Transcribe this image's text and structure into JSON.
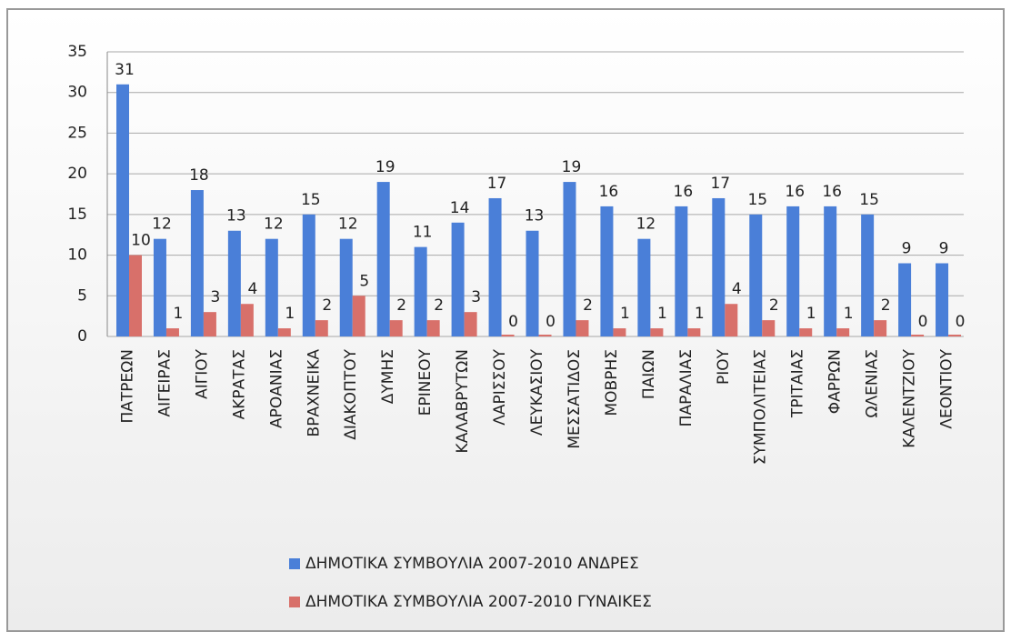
{
  "chart_data": {
    "type": "bar",
    "categories": [
      "ΠΑΤΡΕΩΝ",
      "ΑΙΓΕΙΡΑΣ",
      "ΑΙΓΙΟΥ",
      "ΑΚΡΑΤΑΣ",
      "ΑΡΟΑΝΙΑΣ",
      "ΒΡΑΧΝΕΙΚΑ",
      "ΔΙΑΚΟΠΤΟΥ",
      "ΔΥΜΗΣ",
      "ΕΡΙΝΕΟΥ",
      "ΚΑΛΑΒΡΥΤΩΝ",
      "ΛΑΡΙΣΣΟΥ",
      "ΛΕΥΚΑΣΙΟΥ",
      "ΜΕΣΣΑΤΙΔΟΣ",
      "ΜΟΒΡΗΣ",
      "ΠΑΙΩΝ",
      "ΠΑΡΑΛΙΑΣ",
      "ΡΙΟΥ",
      "ΣΥΜΠΟΛΙΤΕΙΑΣ",
      "ΤΡΙΤΑΙΑΣ",
      "ΦΑΡΡΩΝ",
      "ΩΛΕΝΙΑΣ",
      "ΚΑΛΕΝΤΖΙΟΥ",
      "ΛΕΟΝΤΙΟΥ"
    ],
    "series": [
      {
        "name": "ΔΗΜΟΤΙΚΑ ΣΥΜΒΟΥΛΙΑ 2007-2010 ΑΝΔΡΕΣ",
        "color": "#4a7fd8",
        "values": [
          31,
          12,
          18,
          13,
          12,
          15,
          12,
          19,
          11,
          14,
          17,
          13,
          19,
          16,
          12,
          16,
          17,
          15,
          16,
          16,
          15,
          9,
          9
        ]
      },
      {
        "name": "ΔΗΜΟΤΙΚΑ ΣΥΜΒΟΥΛΙΑ 2007-2010 ΓΥΝΑΙΚΕΣ",
        "color": "#d8706a",
        "values": [
          10,
          1,
          3,
          4,
          1,
          2,
          5,
          2,
          2,
          3,
          0,
          0,
          2,
          1,
          1,
          1,
          4,
          2,
          1,
          1,
          2,
          0,
          0
        ]
      }
    ],
    "ylim": [
      0,
      35
    ],
    "yticks": [
      0,
      5,
      10,
      15,
      20,
      25,
      30,
      35
    ],
    "grid": true,
    "legend": "bottom"
  }
}
